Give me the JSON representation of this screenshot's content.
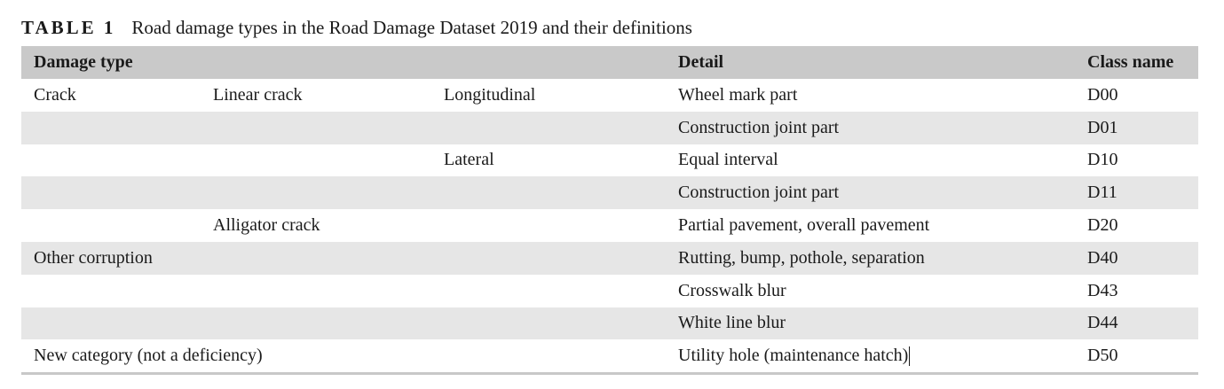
{
  "caption": {
    "label": "TABLE 1",
    "text": "Road damage types in the Road Damage Dataset 2019 and their definitions"
  },
  "headers": {
    "damage_type": "Damage type",
    "detail": "Detail",
    "class_name": "Class name"
  },
  "rows": [
    {
      "c1": "Crack",
      "c2": "Linear crack",
      "c3": "Longitudinal",
      "detail": "Wheel mark part",
      "cls": "D00"
    },
    {
      "c1": "",
      "c2": "",
      "c3": "",
      "detail": "Construction joint part",
      "cls": "D01"
    },
    {
      "c1": "",
      "c2": "",
      "c3": "Lateral",
      "detail": "Equal interval",
      "cls": "D10"
    },
    {
      "c1": "",
      "c2": "",
      "c3": "",
      "detail": "Construction joint part",
      "cls": "D11"
    },
    {
      "c1": "",
      "c2": "Alligator crack",
      "c3": "",
      "detail": "Partial pavement, overall pavement",
      "cls": "D20"
    },
    {
      "c1": "Other corruption",
      "c2": "",
      "c3": "",
      "detail": "Rutting, bump, pothole, separation",
      "cls": "D40"
    },
    {
      "c1": "",
      "c2": "",
      "c3": "",
      "detail": "Crosswalk blur",
      "cls": "D43"
    },
    {
      "c1": "",
      "c2": "",
      "c3": "",
      "detail": "White line blur",
      "cls": "D44"
    },
    {
      "c1": "New category (not a deficiency)",
      "c2": "",
      "c3": "",
      "detail": "Utility hole (maintenance hatch)",
      "cls": "D50"
    }
  ]
}
